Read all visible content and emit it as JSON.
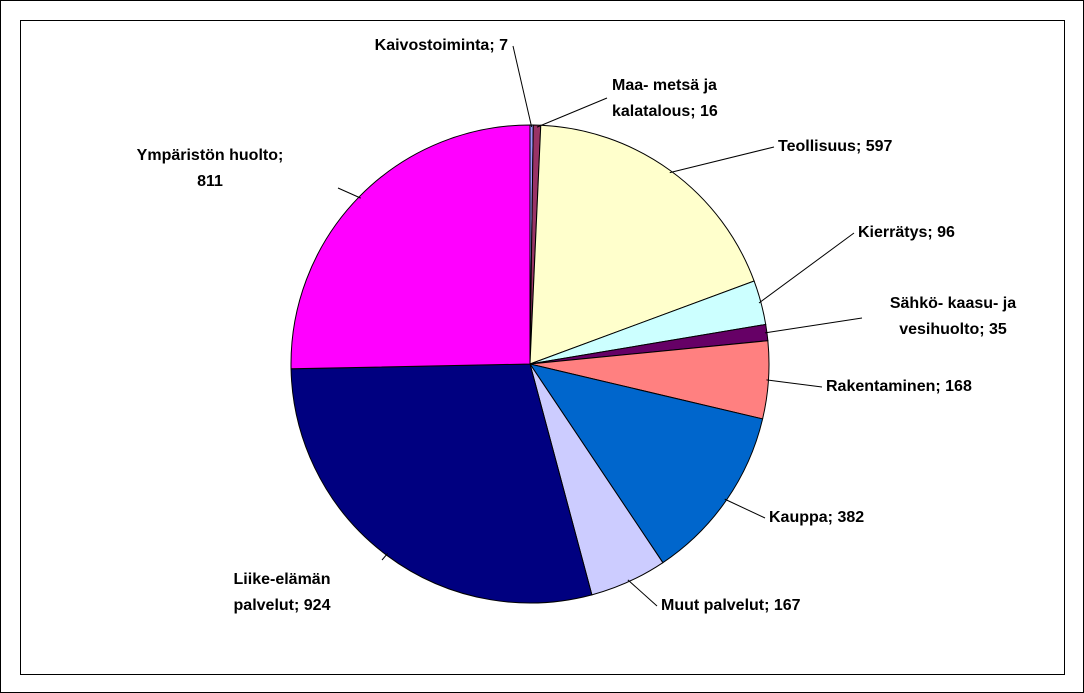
{
  "chart_data": {
    "type": "pie",
    "values": [
      7,
      16,
      597,
      96,
      35,
      168,
      382,
      167,
      924,
      811
    ],
    "value_labels": [
      [
        "Kaivostoiminta; 7"
      ],
      [
        "Maa- metsä ja",
        "kalatalous; 16"
      ],
      [
        "Teollisuus; 597"
      ],
      [
        "Kierrätys; 96"
      ],
      [
        "Sähkö- kaasu- ja",
        "vesihuolto; 35"
      ],
      [
        "Rakentaminen; 168"
      ],
      [
        "Kauppa; 382"
      ],
      [
        "Muut palvelut; 167"
      ],
      [
        "Liike-elämän",
        "palvelut; 924"
      ],
      [
        "Ympäristön huolto;",
        "811"
      ]
    ],
    "colors": [
      "#9999ff",
      "#993366",
      "#ffffcc",
      "#ccffff",
      "#660066",
      "#ff8080",
      "#0066cc",
      "#ccccff",
      "#000080",
      "#ff00ff"
    ]
  }
}
